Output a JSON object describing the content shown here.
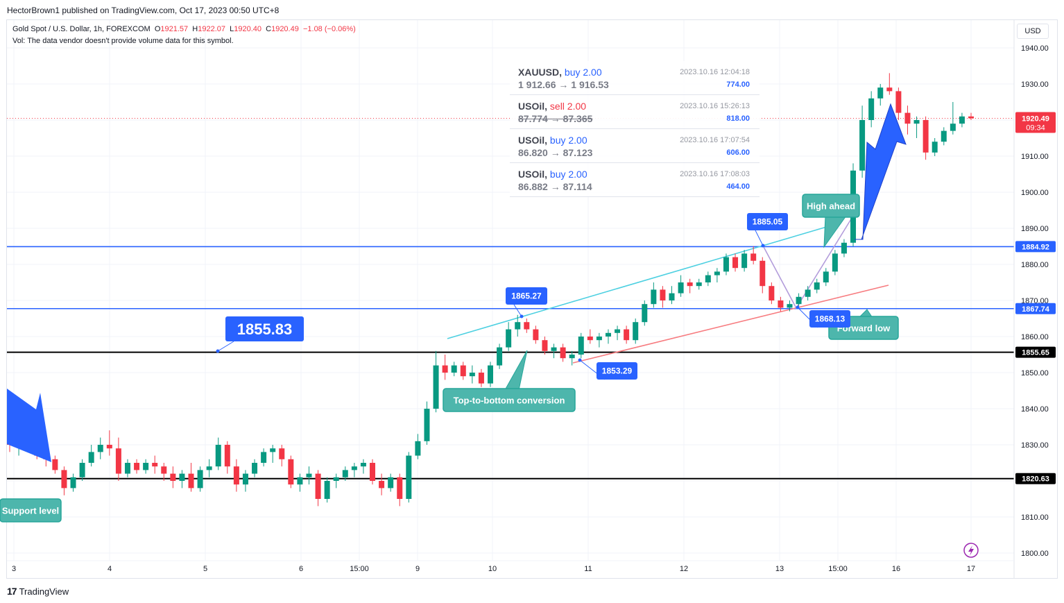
{
  "publish_line": "HectorBrown1 published on TradingView.com, Oct 17, 2023 00:50 UTC+8",
  "header": {
    "symbol_line": "Gold Spot / U.S. Dollar, 1h, FOREXCOM",
    "open_label": "O",
    "open": "1921.57",
    "high_label": "H",
    "high": "1922.07",
    "low_label": "L",
    "low": "1920.40",
    "close_label": "C",
    "close": "1920.49",
    "change": "−1.08 (−0.06%)",
    "vol_line": "Vol: The data vendor doesn't provide volume data for this symbol."
  },
  "currency_button": "USD",
  "branding": "TradingView",
  "trades": [
    {
      "symbol": "XAUUSD,",
      "side": "buy 2.00",
      "side_type": "buy",
      "prices": "1 912.66 → 1 916.53",
      "time": "2023.10.16 12:04:18",
      "pnl": "774.00",
      "struck": false
    },
    {
      "symbol": "USOil,",
      "side": "sell 2.00",
      "side_type": "sell",
      "prices": "87.774 → 87.365",
      "time": "2023.10.16 15:26:13",
      "pnl": "818.00",
      "struck": true
    },
    {
      "symbol": "USOil,",
      "side": "buy 2.00",
      "side_type": "buy",
      "prices": "86.820 → 87.123",
      "time": "2023.10.16 17:07:54",
      "pnl": "606.00",
      "struck": false
    },
    {
      "symbol": "USOil,",
      "side": "buy 2.00",
      "side_type": "buy",
      "prices": "86.882 → 87.114",
      "time": "2023.10.16 17:08:03",
      "pnl": "464.00",
      "struck": false
    }
  ],
  "colors": {
    "up": "#089981",
    "down": "#f23645",
    "blue": "#2962ff",
    "teal": "#4db6ac",
    "cyan_line": "#4dd0e1",
    "red_line": "#f77c80",
    "purple": "#b39ddb"
  },
  "chart_data": {
    "type": "candlestick",
    "ylim": [
      1797,
      1945
    ],
    "y_ticks": [
      1800,
      1810,
      1820,
      1830,
      1840,
      1850,
      1860,
      1870,
      1880,
      1890,
      1900,
      1910,
      1920,
      1930,
      1940
    ],
    "x_ticks": [
      "3",
      "4",
      "5",
      "6",
      "15:00",
      "9",
      "10",
      "11",
      "12",
      "13",
      "15:00",
      "16",
      "17"
    ],
    "last_price": {
      "value": 1920.49,
      "label": "1920.49",
      "countdown": "09:34"
    },
    "horizontal_levels": [
      {
        "value": 1884.92,
        "label": "1884.92",
        "color": "#2962ff"
      },
      {
        "value": 1867.74,
        "label": "1867.74",
        "color": "#2962ff"
      },
      {
        "value": 1855.65,
        "label": "1855.65",
        "color": "#000000"
      },
      {
        "value": 1820.63,
        "label": "1820.63",
        "color": "#000000"
      }
    ],
    "price_notes": [
      {
        "label": "1855.83",
        "value": 1855.83
      },
      {
        "label": "1865.27",
        "value": 1865.27
      },
      {
        "label": "1885.05",
        "value": 1885.05
      },
      {
        "label": "1853.29",
        "value": 1853.29
      },
      {
        "label": "1868.13",
        "value": 1868.13
      }
    ],
    "callouts": [
      "Top-to-bottom conversion",
      "High ahead",
      "Forward low",
      "Support level"
    ],
    "series": [
      {
        "name": "XAUUSD 1h",
        "points": [
          [
            1832,
            1834,
            1828,
            1830
          ],
          [
            1830,
            1833,
            1827,
            1832
          ],
          [
            1832,
            1834,
            1829,
            1831
          ],
          [
            1831,
            1832,
            1826,
            1827
          ],
          [
            1827,
            1829,
            1824,
            1826
          ],
          [
            1826,
            1827,
            1822,
            1823
          ],
          [
            1823,
            1824,
            1816,
            1818
          ],
          [
            1818,
            1822,
            1817,
            1821
          ],
          [
            1821,
            1826,
            1820,
            1825
          ],
          [
            1825,
            1830,
            1824,
            1828
          ],
          [
            1828,
            1832,
            1826,
            1830
          ],
          [
            1830,
            1834,
            1827,
            1829
          ],
          [
            1829,
            1832,
            1820,
            1822
          ],
          [
            1822,
            1826,
            1821,
            1825
          ],
          [
            1825,
            1826,
            1822,
            1823
          ],
          [
            1823,
            1826,
            1822,
            1825
          ],
          [
            1825,
            1827,
            1822,
            1824
          ],
          [
            1824,
            1825,
            1820,
            1822
          ],
          [
            1822,
            1824,
            1818,
            1820
          ],
          [
            1820,
            1823,
            1818,
            1822
          ],
          [
            1822,
            1825,
            1817,
            1818
          ],
          [
            1818,
            1824,
            1817,
            1823
          ],
          [
            1823,
            1826,
            1821,
            1824
          ],
          [
            1824,
            1832,
            1823,
            1830
          ],
          [
            1830,
            1831,
            1822,
            1824
          ],
          [
            1824,
            1826,
            1817,
            1819
          ],
          [
            1819,
            1823,
            1817,
            1822
          ],
          [
            1822,
            1826,
            1821,
            1825
          ],
          [
            1825,
            1829,
            1824,
            1828
          ],
          [
            1828,
            1830,
            1825,
            1829
          ],
          [
            1829,
            1830,
            1824,
            1826
          ],
          [
            1826,
            1827,
            1818,
            1819
          ],
          [
            1819,
            1822,
            1817,
            1821
          ],
          [
            1821,
            1824,
            1819,
            1822
          ],
          [
            1822,
            1823,
            1813,
            1815
          ],
          [
            1815,
            1821,
            1814,
            1820
          ],
          [
            1820,
            1822,
            1818,
            1821
          ],
          [
            1821,
            1824,
            1820,
            1823
          ],
          [
            1823,
            1825,
            1821,
            1824
          ],
          [
            1824,
            1826,
            1822,
            1825
          ],
          [
            1825,
            1826,
            1819,
            1820
          ],
          [
            1820,
            1822,
            1816,
            1818
          ],
          [
            1818,
            1822,
            1817,
            1821
          ],
          [
            1821,
            1822,
            1813,
            1815
          ],
          [
            1815,
            1828,
            1814,
            1827
          ],
          [
            1827,
            1833,
            1826,
            1831
          ],
          [
            1831,
            1842,
            1830,
            1840
          ],
          [
            1840,
            1856,
            1839,
            1852
          ],
          [
            1852,
            1855,
            1848,
            1850
          ],
          [
            1850,
            1853,
            1849,
            1852
          ],
          [
            1852,
            1853,
            1848,
            1849
          ],
          [
            1849,
            1852,
            1847,
            1850
          ],
          [
            1850,
            1851,
            1846,
            1847
          ],
          [
            1847,
            1853,
            1846,
            1852
          ],
          [
            1852,
            1858,
            1851,
            1857
          ],
          [
            1857,
            1864,
            1856,
            1862
          ],
          [
            1862,
            1866,
            1860,
            1864
          ],
          [
            1864,
            1865,
            1861,
            1862
          ],
          [
            1862,
            1863,
            1858,
            1859
          ],
          [
            1859,
            1860,
            1855,
            1856
          ],
          [
            1856,
            1858,
            1854,
            1857
          ],
          [
            1857,
            1858,
            1853,
            1854
          ],
          [
            1854,
            1856,
            1852,
            1855
          ],
          [
            1855,
            1861,
            1854,
            1860
          ],
          [
            1860,
            1862,
            1858,
            1859
          ],
          [
            1859,
            1861,
            1857,
            1860
          ],
          [
            1860,
            1862,
            1858,
            1861
          ],
          [
            1861,
            1863,
            1859,
            1862
          ],
          [
            1862,
            1863,
            1858,
            1859
          ],
          [
            1859,
            1865,
            1858,
            1864
          ],
          [
            1864,
            1870,
            1863,
            1869
          ],
          [
            1869,
            1875,
            1868,
            1873
          ],
          [
            1873,
            1874,
            1868,
            1870
          ],
          [
            1870,
            1874,
            1869,
            1872
          ],
          [
            1872,
            1877,
            1871,
            1875
          ],
          [
            1875,
            1876,
            1872,
            1874
          ],
          [
            1874,
            1876,
            1873,
            1875
          ],
          [
            1875,
            1878,
            1874,
            1877
          ],
          [
            1877,
            1879,
            1875,
            1878
          ],
          [
            1878,
            1883,
            1877,
            1882
          ],
          [
            1882,
            1883,
            1878,
            1879
          ],
          [
            1879,
            1884,
            1878,
            1883
          ],
          [
            1883,
            1885,
            1880,
            1881
          ],
          [
            1881,
            1882,
            1872,
            1874
          ],
          [
            1874,
            1875,
            1869,
            1870
          ],
          [
            1870,
            1871,
            1867,
            1868
          ],
          [
            1868,
            1870,
            1867,
            1869
          ],
          [
            1869,
            1872,
            1868,
            1871
          ],
          [
            1871,
            1874,
            1870,
            1873
          ],
          [
            1873,
            1876,
            1872,
            1875
          ],
          [
            1875,
            1879,
            1874,
            1878
          ],
          [
            1878,
            1884,
            1877,
            1883
          ],
          [
            1883,
            1887,
            1882,
            1886
          ],
          [
            1886,
            1908,
            1885,
            1906
          ],
          [
            1906,
            1924,
            1904,
            1920
          ],
          [
            1920,
            1928,
            1918,
            1926
          ],
          [
            1926,
            1930,
            1924,
            1929
          ],
          [
            1929,
            1933,
            1927,
            1928
          ],
          [
            1928,
            1929,
            1920,
            1922
          ],
          [
            1922,
            1924,
            1916,
            1919
          ],
          [
            1919,
            1921,
            1915,
            1920
          ],
          [
            1920,
            1921,
            1909,
            1911
          ],
          [
            1911,
            1915,
            1910,
            1914
          ],
          [
            1914,
            1918,
            1913,
            1917
          ],
          [
            1917,
            1925,
            1916,
            1919
          ],
          [
            1919,
            1922,
            1918,
            1921
          ],
          [
            1921,
            1922,
            1920,
            1920.49
          ]
        ]
      }
    ]
  }
}
